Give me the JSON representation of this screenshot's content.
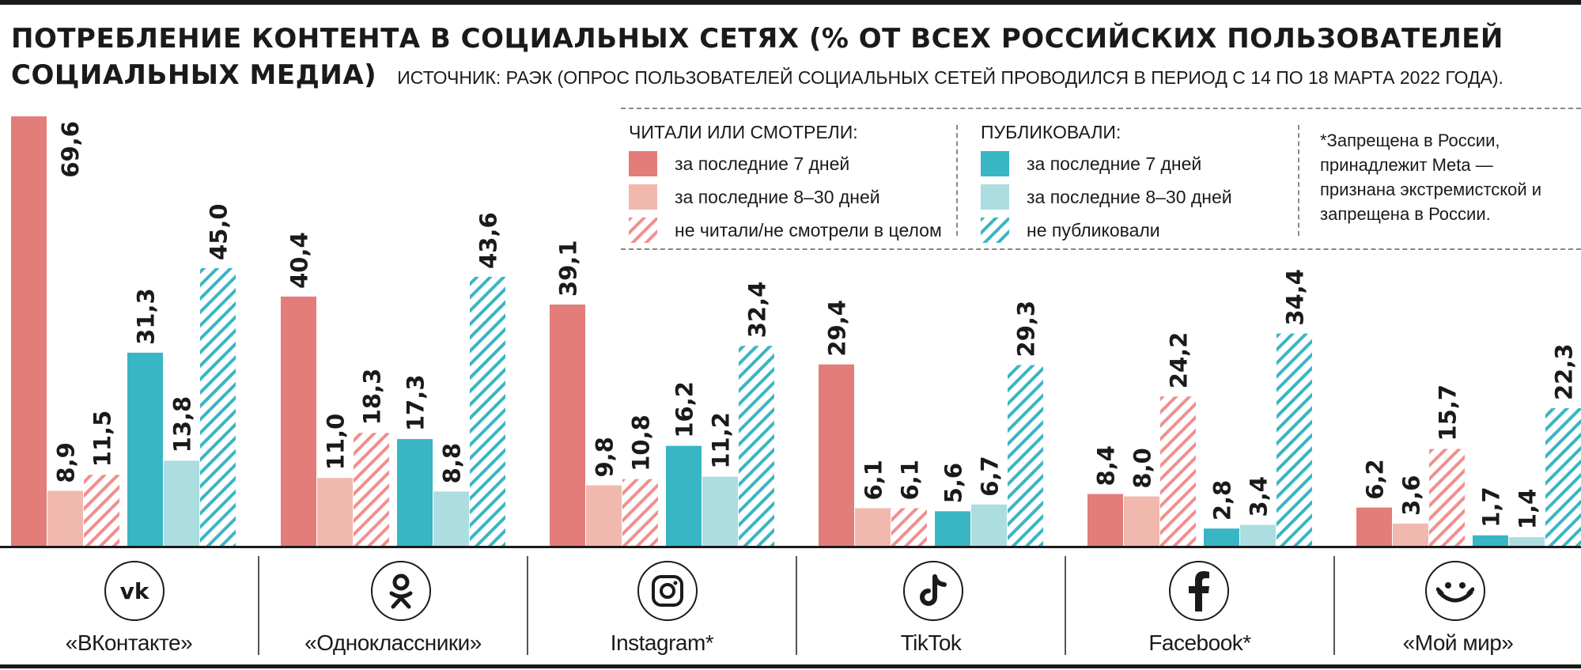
{
  "title": {
    "line1": "ПОТРЕБЛЕНИЕ КОНТЕНТА В СОЦИАЛЬНЫХ СЕТЯХ (% ОТ ВСЕХ РОССИЙСКИХ ПОЛЬЗОВАТЕЛЕЙ",
    "line2": "СОЦИАЛЬНЫХ МЕДИА)",
    "source": "ИСТОЧНИК: РАЭК (ОПРОС ПОЛЬЗОВАТЕЛЕЙ СОЦИАЛЬНЫХ СЕТЕЙ ПРОВОДИЛСЯ В ПЕРИОД С 14 ПО 18 МАРТА 2022 ГОДА)."
  },
  "legend": {
    "read_header": "ЧИТАЛИ ИЛИ СМОТРЕЛИ:",
    "read_items": [
      "за последние 7 дней",
      "за последние 8–30 дней",
      "не читали/не смотрели в целом"
    ],
    "pub_header": "ПУБЛИКОВАЛИ:",
    "pub_items": [
      "за последние 7 дней",
      "за последние 8–30 дней",
      "не публиковали"
    ],
    "note": "*Запрещена в России, принадлежит Meta — признана экстремистской и запрещена в России."
  },
  "colors": {
    "read_7": "#e27d7a",
    "read_30": "#f1b8ae",
    "read_never": "#f08f8c",
    "pub_7": "#38b6c4",
    "pub_30": "#acdde0",
    "pub_never": "#3ab5c4"
  },
  "platform_icons": [
    "vk-icon",
    "odnoklassniki-icon",
    "instagram-icon",
    "tiktok-icon",
    "facebook-icon",
    "moy-mir-icon"
  ],
  "chart_data": {
    "type": "bar",
    "title": "ПОТРЕБЛЕНИЕ КОНТЕНТА В СОЦИАЛЬНЫХ СЕТЯХ (% ОТ ВСЕХ РОССИЙСКИХ ПОЛЬЗОВАТЕЛЕЙ СОЦИАЛЬНЫХ МЕДИА)",
    "categories": [
      "«ВКонтакте»",
      "«Одноклассники»",
      "Instagram*",
      "TikTok",
      "Facebook*",
      "«Мой мир»"
    ],
    "series": [
      {
        "name": "ЧИТАЛИ ИЛИ СМОТРЕЛИ: за последние 7 дней",
        "values": [
          69.6,
          40.4,
          39.1,
          29.4,
          8.4,
          6.2
        ],
        "labels": [
          "69,6",
          "40,4",
          "39,1",
          "29,4",
          "8,4",
          "6,2"
        ]
      },
      {
        "name": "ЧИТАЛИ ИЛИ СМОТРЕЛИ: за последние 8–30 дней",
        "values": [
          8.9,
          11.0,
          9.8,
          6.1,
          8.0,
          3.6
        ],
        "labels": [
          "8,9",
          "11,0",
          "9,8",
          "6,1",
          "8,0",
          "3,6"
        ]
      },
      {
        "name": "ЧИТАЛИ ИЛИ СМОТРЕЛИ: не читали/не смотрели в целом",
        "values": [
          11.5,
          18.3,
          10.8,
          6.1,
          24.2,
          15.7
        ],
        "labels": [
          "11,5",
          "18,3",
          "10,8",
          "6,1",
          "24,2",
          "15,7"
        ]
      },
      {
        "name": "ПУБЛИКОВАЛИ: за последние 7 дней",
        "values": [
          31.3,
          17.3,
          16.2,
          5.6,
          2.8,
          1.7
        ],
        "labels": [
          "31,3",
          "17,3",
          "16,2",
          "5,6",
          "2,8",
          "1,7"
        ]
      },
      {
        "name": "ПУБЛИКОВАЛИ: за последние 8–30 дней",
        "values": [
          13.8,
          8.8,
          11.2,
          6.7,
          3.4,
          1.4
        ],
        "labels": [
          "13,8",
          "8,8",
          "11,2",
          "6,7",
          "3,4",
          "1,4"
        ]
      },
      {
        "name": "ПУБЛИКОВАЛИ: не публиковали",
        "values": [
          45.0,
          43.6,
          32.4,
          29.3,
          34.4,
          22.3
        ],
        "labels": [
          "45,0",
          "43,6",
          "32,4",
          "29,3",
          "34,4",
          "22,3"
        ]
      }
    ],
    "ylim": [
      0,
      70
    ],
    "grid": false,
    "legend_position": "top-right"
  }
}
